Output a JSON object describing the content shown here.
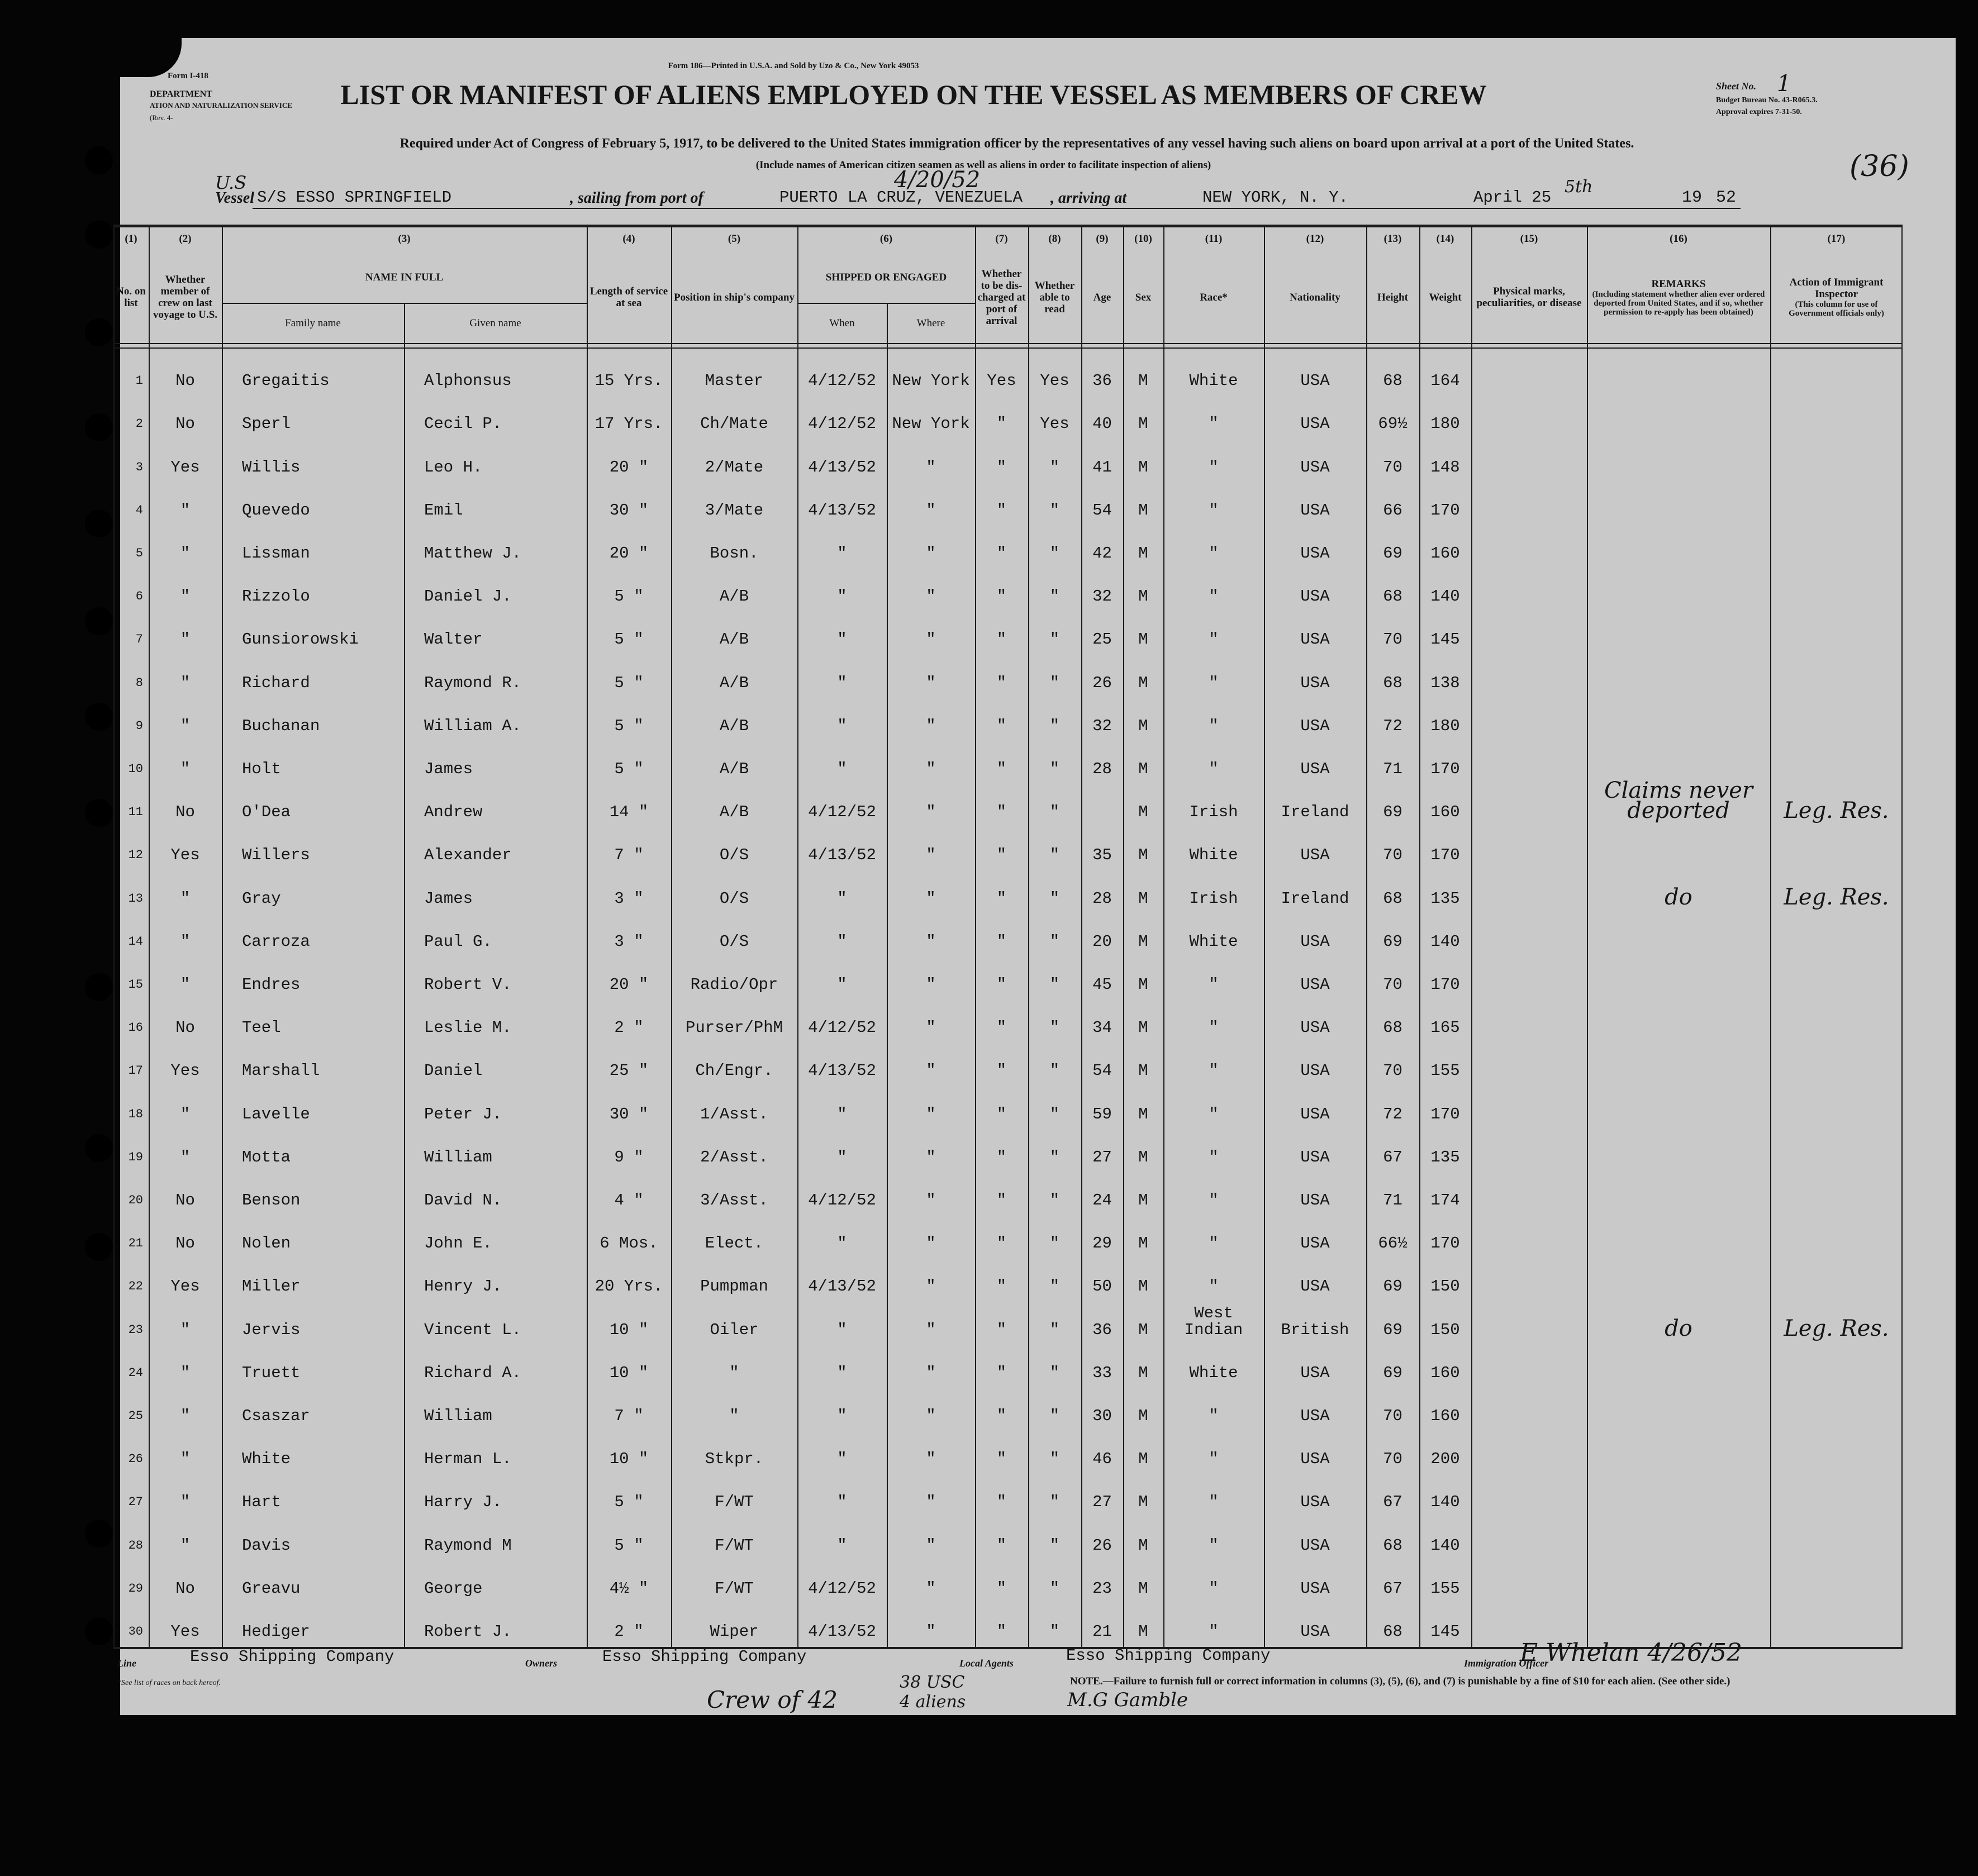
{
  "header": {
    "form_left": "Form I-418",
    "department": "DEPARTMENT",
    "service": "ATION AND NATURALIZATION SERVICE",
    "revision": "(Rev. 4-",
    "printer": "Form 186—Printed in U.S.A. and Sold by Uzo & Co., New York 49053",
    "title": "LIST OR MANIFEST OF ALIENS EMPLOYED ON THE VESSEL AS MEMBERS OF CREW",
    "subtitle": "Required under Act of Congress of February 5, 1917, to be delivered to the United States immigration officer by the representatives of any vessel having such aliens on board upon arrival at a port of the United States.",
    "note": "(Include names of American citizen seamen as well as aliens in order to facilitate inspection of aliens)",
    "sheet_label": "Sheet No.",
    "sheet_number": "1",
    "budget": "Budget Bureau No. 43-R065.3.",
    "approval": "Approval expires 7-31-50.",
    "annotation": "(36)"
  },
  "vessel": {
    "handwritten_prefix": "U.S",
    "label": "Vessel",
    "name": "S/S ESSO SPRINGFIELD",
    "sailing_label": ", sailing from port of",
    "port": "PUERTO LA CRUZ, VENEZUELA",
    "handwritten_date": "4/20/52",
    "arriving_label": ", arriving at",
    "destination": "NEW YORK, N. Y.",
    "date": "April 25",
    "date_suffix": "5th",
    "year_prefix": "19",
    "year": "52"
  },
  "table": {
    "columns": [
      {
        "number": "(1)",
        "label": "No. on list"
      },
      {
        "number": "(2)",
        "label": "Whether member of crew on last voyage to U.S."
      },
      {
        "number": "(3)",
        "label": "NAME IN FULL",
        "subcolumns": [
          "Family name",
          "Given name"
        ]
      },
      {
        "number": "(4)",
        "label": "Length of service at sea"
      },
      {
        "number": "(5)",
        "label": "Position in ship's company"
      },
      {
        "number": "(6)",
        "label": "SHIPPED OR ENGAGED",
        "subcolumns": [
          "When",
          "Where"
        ]
      },
      {
        "number": "(7)",
        "label": "Whether to be dis-charged at port of arrival"
      },
      {
        "number": "(8)",
        "label": "Whether able to read"
      },
      {
        "number": "(9)",
        "label": "Age"
      },
      {
        "number": "(10)",
        "label": "Sex"
      },
      {
        "number": "(11)",
        "label": "Race*"
      },
      {
        "number": "(12)",
        "label": "Nationality"
      },
      {
        "number": "(13)",
        "label": "Height"
      },
      {
        "number": "(14)",
        "label": "Weight"
      },
      {
        "number": "(15)",
        "label": "Physical marks, peculiarities, or disease"
      },
      {
        "number": "(16)",
        "label": "REMARKS",
        "detail": "(Including statement whether alien ever ordered deported from United States, and if so, whether permission to re-apply has been obtained)"
      },
      {
        "number": "(17)",
        "label": "Action of Immigrant Inspector",
        "detail": "(This column for use of Government officials only)"
      }
    ],
    "rows": [
      [
        "1",
        "No",
        "Gregaitis",
        "Alphonsus",
        "15 Yrs.",
        "Master",
        "4/12/52",
        "New York",
        "Yes",
        "Yes",
        "36",
        "M",
        "White",
        "USA",
        "68",
        "164",
        null,
        null,
        null
      ],
      [
        "2",
        "No",
        "Sperl",
        "Cecil P.",
        "17 Yrs.",
        "Ch/Mate",
        "4/12/52",
        "New York",
        "\"",
        "Yes",
        "40",
        "M",
        "\"",
        "USA",
        "69½",
        "180",
        null,
        null,
        null
      ],
      [
        "3",
        "Yes",
        "Willis",
        "Leo H.",
        "20 \"",
        "2/Mate",
        "4/13/52",
        "\"",
        "\"",
        "\"",
        "41",
        "M",
        "\"",
        "USA",
        "70",
        "148",
        null,
        null,
        null
      ],
      [
        "4",
        "\"",
        "Quevedo",
        "Emil",
        "30 \"",
        "3/Mate",
        "4/13/52",
        "\"",
        "\"",
        "\"",
        "54",
        "M",
        "\"",
        "USA",
        "66",
        "170",
        null,
        null,
        null
      ],
      [
        "5",
        "\"",
        "Lissman",
        "Matthew J.",
        "20 \"",
        "Bosn.",
        "\"",
        "\"",
        "\"",
        "\"",
        "42",
        "M",
        "\"",
        "USA",
        "69",
        "160",
        null,
        null,
        null
      ],
      [
        "6",
        "\"",
        "Rizzolo",
        "Daniel J.",
        "5 \"",
        "A/B",
        "\"",
        "\"",
        "\"",
        "\"",
        "32",
        "M",
        "\"",
        "USA",
        "68",
        "140",
        null,
        null,
        null
      ],
      [
        "7",
        "\"",
        "Gunsiorowski",
        "Walter",
        "5 \"",
        "A/B",
        "\"",
        "\"",
        "\"",
        "\"",
        "25",
        "M",
        "\"",
        "USA",
        "70",
        "145",
        null,
        null,
        null
      ],
      [
        "8",
        "\"",
        "Richard",
        "Raymond R.",
        "5 \"",
        "A/B",
        "\"",
        "\"",
        "\"",
        "\"",
        "26",
        "M",
        "\"",
        "USA",
        "68",
        "138",
        null,
        null,
        null
      ],
      [
        "9",
        "\"",
        "Buchanan",
        "William A.",
        "5 \"",
        "A/B",
        "\"",
        "\"",
        "\"",
        "\"",
        "32",
        "M",
        "\"",
        "USA",
        "72",
        "180",
        null,
        null,
        null
      ],
      [
        "10",
        "\"",
        "Holt",
        "James",
        "5 \"",
        "A/B",
        "\"",
        "\"",
        "\"",
        "\"",
        "28",
        "M",
        "\"",
        "USA",
        "71",
        "170",
        null,
        null,
        null
      ],
      [
        "11",
        "No",
        "O'Dea",
        "Andrew",
        "14 \"",
        "A/B",
        "4/12/52",
        "\"",
        "\"",
        "\"",
        null,
        "M",
        "Irish",
        "Ireland",
        "69",
        "160",
        null,
        "Claims never deported",
        "Leg. Res."
      ],
      [
        "12",
        "Yes",
        "Willers",
        "Alexander",
        "7 \"",
        "O/S",
        "4/13/52",
        "\"",
        "\"",
        "\"",
        "35",
        "M",
        "White",
        "USA",
        "70",
        "170",
        null,
        null,
        null
      ],
      [
        "13",
        "\"",
        "Gray",
        "James",
        "3 \"",
        "O/S",
        "\"",
        "\"",
        "\"",
        "\"",
        "28",
        "M",
        "Irish",
        "Ireland",
        "68",
        "135",
        null,
        "do",
        "Leg. Res."
      ],
      [
        "14",
        "\"",
        "Carroza",
        "Paul G.",
        "3 \"",
        "O/S",
        "\"",
        "\"",
        "\"",
        "\"",
        "20",
        "M",
        "White",
        "USA",
        "69",
        "140",
        null,
        null,
        null
      ],
      [
        "15",
        "\"",
        "Endres",
        "Robert V.",
        "20 \"",
        "Radio/Opr",
        "\"",
        "\"",
        "\"",
        "\"",
        "45",
        "M",
        "\"",
        "USA",
        "70",
        "170",
        null,
        null,
        null
      ],
      [
        "16",
        "No",
        "Teel",
        "Leslie M.",
        "2 \"",
        "Purser/PhM",
        "4/12/52",
        "\"",
        "\"",
        "\"",
        "34",
        "M",
        "\"",
        "USA",
        "68",
        "165",
        null,
        null,
        null
      ],
      [
        "17",
        "Yes",
        "Marshall",
        "Daniel",
        "25 \"",
        "Ch/Engr.",
        "4/13/52",
        "\"",
        "\"",
        "\"",
        "54",
        "M",
        "\"",
        "USA",
        "70",
        "155",
        null,
        null,
        null
      ],
      [
        "18",
        "\"",
        "Lavelle",
        "Peter J.",
        "30 \"",
        "1/Asst.",
        "\"",
        "\"",
        "\"",
        "\"",
        "59",
        "M",
        "\"",
        "USA",
        "72",
        "170",
        null,
        null,
        null
      ],
      [
        "19",
        "\"",
        "Motta",
        "William",
        "9 \"",
        "2/Asst.",
        "\"",
        "\"",
        "\"",
        "\"",
        "27",
        "M",
        "\"",
        "USA",
        "67",
        "135",
        null,
        null,
        null
      ],
      [
        "20",
        "No",
        "Benson",
        "David N.",
        "4 \"",
        "3/Asst.",
        "4/12/52",
        "\"",
        "\"",
        "\"",
        "24",
        "M",
        "\"",
        "USA",
        "71",
        "174",
        null,
        null,
        null
      ],
      [
        "21",
        "No",
        "Nolen",
        "John E.",
        "6 Mos.",
        "Elect.",
        "\"",
        "\"",
        "\"",
        "\"",
        "29",
        "M",
        "\"",
        "USA",
        "66½",
        "170",
        null,
        null,
        null
      ],
      [
        "22",
        "Yes",
        "Miller",
        "Henry J.",
        "20 Yrs.",
        "Pumpman",
        "4/13/52",
        "\"",
        "\"",
        "\"",
        "50",
        "M",
        "\"",
        "USA",
        "69",
        "150",
        null,
        null,
        null
      ],
      [
        "23",
        "\"",
        "Jervis",
        "Vincent L.",
        "10 \"",
        "Oiler",
        "\"",
        "\"",
        "\"",
        "\"",
        "36",
        "M",
        "West Indian",
        "British",
        "69",
        "150",
        null,
        "do",
        "Leg. Res."
      ],
      [
        "24",
        "\"",
        "Truett",
        "Richard A.",
        "10 \"",
        "\"",
        "\"",
        "\"",
        "\"",
        "\"",
        "33",
        "M",
        "White",
        "USA",
        "69",
        "160",
        null,
        null,
        null
      ],
      [
        "25",
        "\"",
        "Csaszar",
        "William",
        "7 \"",
        "\"",
        "\"",
        "\"",
        "\"",
        "\"",
        "30",
        "M",
        "\"",
        "USA",
        "70",
        "160",
        null,
        null,
        null
      ],
      [
        "26",
        "\"",
        "White",
        "Herman L.",
        "10 \"",
        "Stkpr.",
        "\"",
        "\"",
        "\"",
        "\"",
        "46",
        "M",
        "\"",
        "USA",
        "70",
        "200",
        null,
        null,
        null
      ],
      [
        "27",
        "\"",
        "Hart",
        "Harry J.",
        "5 \"",
        "F/WT",
        "\"",
        "\"",
        "\"",
        "\"",
        "27",
        "M",
        "\"",
        "USA",
        "67",
        "140",
        null,
        null,
        null
      ],
      [
        "28",
        "\"",
        "Davis",
        "Raymond M",
        "5 \"",
        "F/WT",
        "\"",
        "\"",
        "\"",
        "\"",
        "26",
        "M",
        "\"",
        "USA",
        "68",
        "140",
        null,
        null,
        null
      ],
      [
        "29",
        "No",
        "Greavu",
        "George",
        "4½ \"",
        "F/WT",
        "4/12/52",
        "\"",
        "\"",
        "\"",
        "23",
        "M",
        "\"",
        "USA",
        "67",
        "155",
        null,
        null,
        null
      ],
      [
        "30",
        "Yes",
        "Hediger",
        "Robert J.",
        "2 \"",
        "Wiper",
        "4/13/52",
        "\"",
        "\"",
        "\"",
        "21",
        "M",
        "\"",
        "USA",
        "68",
        "145",
        null,
        null,
        null
      ]
    ]
  },
  "footer": {
    "line_label": "Line",
    "line": "Esso Shipping Company",
    "owners_label": "Owners",
    "owners": "Esso Shipping Company",
    "agents_label": "Local Agents",
    "agents": "Esso Shipping Company",
    "officer_label": "Immigration Officer",
    "officer_signature": "E Whelan 4/26/52",
    "races_note": "*See list of races on back hereof.",
    "penalty_note": "NOTE.—Failure to furnish full or correct information in columns (3), (5), (6), and (7) is punishable by a fine of $10 for each alien. (See other side.)",
    "crew_note": "Crew of 42",
    "crew_breakdown": [
      "38 USC",
      "4 aliens"
    ],
    "clerk": "M.G Gamble"
  }
}
